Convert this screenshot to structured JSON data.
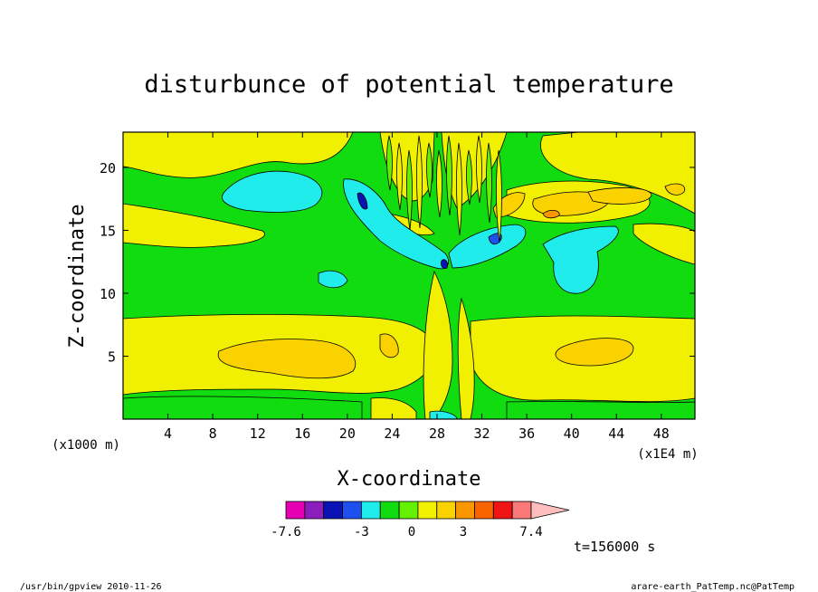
{
  "chart_data": {
    "type": "heatmap",
    "title": "disturbunce of potential temperature",
    "xlabel": "X-coordinate",
    "ylabel": "Z-coordinate",
    "x_unit": "(x1E4 m)",
    "y_unit": "(x1000 m)",
    "xlim": [
      0,
      51
    ],
    "ylim": [
      0,
      22.8
    ],
    "x_ticks": [
      4,
      8,
      12,
      16,
      20,
      24,
      28,
      32,
      36,
      40,
      44,
      48
    ],
    "y_ticks": [
      5,
      10,
      15,
      20
    ],
    "colorbar": {
      "levels": [
        -7.6,
        -6.4,
        -5.4,
        -4.2,
        -3.0,
        -1.9,
        -0.8,
        0.4,
        1.5,
        2.6,
        3.6,
        4.8,
        5.9,
        7.4
      ],
      "colors": [
        "#e600b4",
        "#8c1ebe",
        "#0a14b4",
        "#1e50f0",
        "#20ecec",
        "#10dc10",
        "#64f000",
        "#f0f000",
        "#fad200",
        "#fa9600",
        "#fa6400",
        "#f01414",
        "#fa7878"
      ],
      "extend_color": "#ffbebe",
      "tick_labels": [
        {
          "value": -7.6,
          "label": "-7.6"
        },
        {
          "value": -3.0,
          "label": "-3"
        },
        {
          "value": 0.0,
          "label": "0"
        },
        {
          "value": 3.0,
          "label": "3"
        },
        {
          "value": 7.4,
          "label": "7.4"
        }
      ]
    },
    "time_label": "t=156000 s"
  },
  "footer": {
    "left": "/usr/bin/gpview  2010-11-26",
    "right": "arare-earth_PatTemp.nc@PatTemp"
  }
}
